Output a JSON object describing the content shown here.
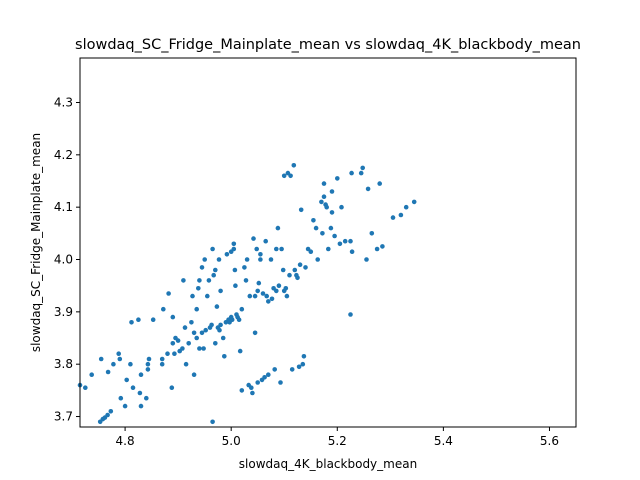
{
  "chart_data": {
    "type": "scatter",
    "title": "slowdaq_SC_Fridge_Mainplate_mean vs slowdaq_4K_blackbody_mean",
    "xlabel": "slowdaq_4K_blackbody_mean",
    "ylabel": "slowdaq_SC_Fridge_Mainplate_mean",
    "xlim": [
      4.715,
      5.65
    ],
    "ylim": [
      3.68,
      4.385
    ],
    "xticks": [
      4.8,
      5.0,
      5.2,
      5.4,
      5.6
    ],
    "yticks": [
      3.7,
      3.8,
      3.9,
      4.0,
      4.1,
      4.2,
      4.3
    ],
    "xtick_labels": [
      "4.8",
      "5.0",
      "5.2",
      "5.4",
      "5.6"
    ],
    "ytick_labels": [
      "3.7",
      "3.8",
      "3.9",
      "4.0",
      "4.1",
      "4.2",
      "4.3"
    ],
    "grid": false,
    "marker_color": "#1f77b4",
    "points": [
      [
        4.715,
        3.76
      ],
      [
        4.725,
        3.755
      ],
      [
        4.737,
        3.78
      ],
      [
        4.755,
        3.81
      ],
      [
        4.753,
        3.69
      ],
      [
        4.758,
        3.695
      ],
      [
        4.762,
        3.698
      ],
      [
        4.767,
        3.703
      ],
      [
        4.768,
        3.785
      ],
      [
        4.773,
        3.71
      ],
      [
        4.778,
        3.8
      ],
      [
        4.788,
        3.82
      ],
      [
        4.79,
        3.81
      ],
      [
        4.792,
        3.735
      ],
      [
        4.8,
        3.72
      ],
      [
        4.803,
        3.77
      ],
      [
        4.81,
        3.8
      ],
      [
        4.812,
        3.88
      ],
      [
        4.815,
        3.755
      ],
      [
        4.825,
        3.885
      ],
      [
        4.828,
        3.745
      ],
      [
        4.83,
        3.78
      ],
      [
        4.83,
        3.72
      ],
      [
        4.84,
        3.735
      ],
      [
        4.843,
        3.8
      ],
      [
        4.843,
        3.79
      ],
      [
        4.845,
        3.81
      ],
      [
        4.853,
        3.885
      ],
      [
        4.87,
        3.81
      ],
      [
        4.87,
        3.8
      ],
      [
        4.872,
        3.905
      ],
      [
        4.88,
        3.82
      ],
      [
        4.882,
        3.935
      ],
      [
        4.888,
        3.755
      ],
      [
        4.89,
        3.84
      ],
      [
        4.89,
        3.89
      ],
      [
        4.893,
        3.82
      ],
      [
        4.895,
        3.85
      ],
      [
        4.9,
        3.845
      ],
      [
        4.903,
        3.825
      ],
      [
        4.908,
        3.83
      ],
      [
        4.91,
        3.96
      ],
      [
        4.913,
        3.87
      ],
      [
        4.915,
        3.8
      ],
      [
        4.92,
        3.84
      ],
      [
        4.925,
        3.88
      ],
      [
        4.927,
        3.93
      ],
      [
        4.93,
        3.78
      ],
      [
        4.93,
        3.86
      ],
      [
        4.935,
        3.905
      ],
      [
        4.935,
        3.85
      ],
      [
        4.938,
        3.945
      ],
      [
        4.94,
        3.96
      ],
      [
        4.94,
        3.83
      ],
      [
        4.945,
        3.985
      ],
      [
        4.945,
        3.86
      ],
      [
        4.948,
        3.83
      ],
      [
        4.95,
        4.0
      ],
      [
        4.952,
        3.865
      ],
      [
        4.955,
        3.93
      ],
      [
        4.958,
        3.96
      ],
      [
        4.96,
        3.87
      ],
      [
        4.963,
        3.875
      ],
      [
        4.965,
        4.02
      ],
      [
        4.965,
        3.69
      ],
      [
        4.967,
        3.97
      ],
      [
        4.97,
        3.98
      ],
      [
        4.97,
        3.84
      ],
      [
        4.973,
        3.91
      ],
      [
        4.975,
        3.87
      ],
      [
        4.977,
        4.0
      ],
      [
        4.978,
        3.865
      ],
      [
        4.98,
        3.94
      ],
      [
        4.98,
        3.875
      ],
      [
        4.985,
        3.85
      ],
      [
        4.987,
        3.815
      ],
      [
        4.99,
        3.88
      ],
      [
        4.992,
        4.01
      ],
      [
        4.995,
        3.885
      ],
      [
        4.997,
        3.88
      ],
      [
        5.0,
        4.015
      ],
      [
        5.0,
        3.89
      ],
      [
        5.002,
        3.885
      ],
      [
        5.005,
        4.02
      ],
      [
        5.005,
        4.03
      ],
      [
        5.007,
        3.98
      ],
      [
        5.008,
        3.95
      ],
      [
        5.01,
        3.895
      ],
      [
        5.012,
        3.89
      ],
      [
        5.015,
        3.885
      ],
      [
        5.017,
        3.825
      ],
      [
        5.02,
        3.905
      ],
      [
        5.02,
        3.75
      ],
      [
        5.025,
        3.985
      ],
      [
        5.028,
        3.96
      ],
      [
        5.03,
        4.0
      ],
      [
        5.033,
        3.76
      ],
      [
        5.035,
        3.93
      ],
      [
        5.038,
        3.755
      ],
      [
        5.04,
        3.745
      ],
      [
        5.042,
        4.04
      ],
      [
        5.045,
        3.93
      ],
      [
        5.045,
        3.86
      ],
      [
        5.048,
        4.02
      ],
      [
        5.05,
        3.94
      ],
      [
        5.05,
        3.765
      ],
      [
        5.052,
        3.955
      ],
      [
        5.055,
        4.01
      ],
      [
        5.055,
        4.0
      ],
      [
        5.058,
        3.77
      ],
      [
        5.06,
        3.935
      ],
      [
        5.063,
        3.775
      ],
      [
        5.065,
        4.035
      ],
      [
        5.067,
        3.93
      ],
      [
        5.07,
        3.92
      ],
      [
        5.07,
        3.78
      ],
      [
        5.075,
        4.0
      ],
      [
        5.077,
        3.925
      ],
      [
        5.08,
        3.945
      ],
      [
        5.082,
        3.79
      ],
      [
        5.085,
        4.02
      ],
      [
        5.085,
        3.94
      ],
      [
        5.088,
        4.06
      ],
      [
        5.09,
        3.95
      ],
      [
        5.093,
        3.765
      ],
      [
        5.095,
        4.02
      ],
      [
        5.098,
        3.98
      ],
      [
        5.1,
        3.94
      ],
      [
        5.1,
        4.16
      ],
      [
        5.103,
        3.945
      ],
      [
        5.105,
        3.93
      ],
      [
        5.107,
        4.165
      ],
      [
        5.11,
        3.97
      ],
      [
        5.112,
        4.16
      ],
      [
        5.115,
        3.79
      ],
      [
        5.118,
        4.18
      ],
      [
        5.12,
        3.98
      ],
      [
        5.123,
        3.97
      ],
      [
        5.125,
        3.965
      ],
      [
        5.128,
        3.795
      ],
      [
        5.13,
        3.99
      ],
      [
        5.132,
        4.095
      ],
      [
        5.135,
        3.8
      ],
      [
        5.137,
        3.815
      ],
      [
        5.14,
        3.985
      ],
      [
        5.145,
        4.02
      ],
      [
        5.15,
        4.015
      ],
      [
        5.155,
        4.075
      ],
      [
        5.16,
        4.06
      ],
      [
        5.163,
        4.0
      ],
      [
        5.17,
        4.11
      ],
      [
        5.172,
        4.05
      ],
      [
        5.175,
        4.145
      ],
      [
        5.175,
        4.12
      ],
      [
        5.178,
        4.105
      ],
      [
        5.18,
        4.1
      ],
      [
        5.183,
        4.02
      ],
      [
        5.188,
        4.06
      ],
      [
        5.19,
        4.09
      ],
      [
        5.19,
        4.13
      ],
      [
        5.195,
        4.045
      ],
      [
        5.2,
        4.155
      ],
      [
        5.205,
        4.03
      ],
      [
        5.208,
        4.1
      ],
      [
        5.215,
        4.035
      ],
      [
        5.225,
        4.035
      ],
      [
        5.227,
        4.165
      ],
      [
        5.228,
        4.015
      ],
      [
        5.225,
        3.895
      ],
      [
        5.245,
        4.165
      ],
      [
        5.248,
        4.175
      ],
      [
        5.255,
        4.0
      ],
      [
        5.258,
        4.135
      ],
      [
        5.265,
        4.05
      ],
      [
        5.275,
        4.02
      ],
      [
        5.28,
        4.145
      ],
      [
        5.285,
        4.025
      ],
      [
        5.305,
        4.08
      ],
      [
        5.32,
        4.085
      ],
      [
        5.33,
        4.1
      ],
      [
        5.345,
        4.11
      ]
    ]
  }
}
